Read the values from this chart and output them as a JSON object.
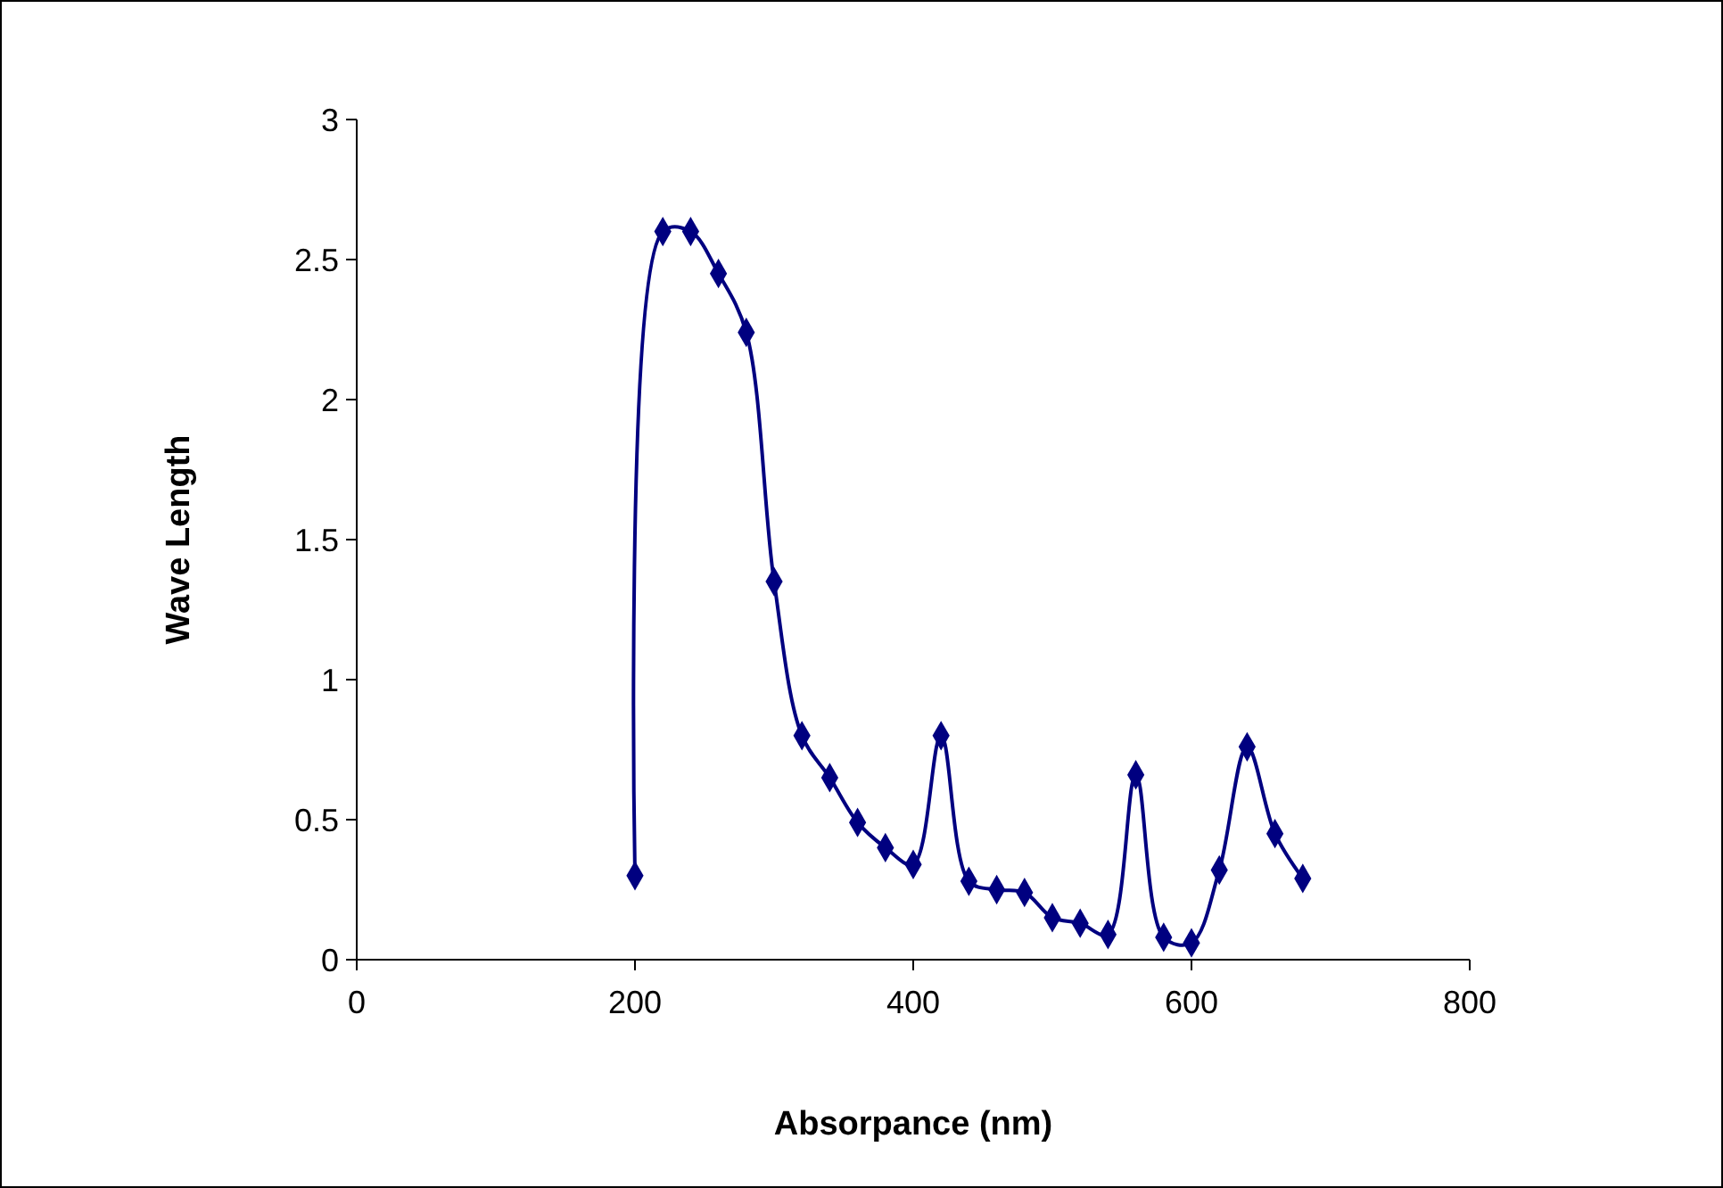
{
  "chart_data": {
    "type": "line",
    "xlabel": "Absorpance (nm)",
    "ylabel": "Wave Length",
    "x": [
      200,
      220,
      240,
      260,
      280,
      300,
      320,
      340,
      360,
      380,
      400,
      420,
      440,
      460,
      480,
      500,
      520,
      540,
      560,
      580,
      600,
      620,
      640,
      660,
      680
    ],
    "series": [
      {
        "color": "#000080",
        "values": [
          0.3,
          2.6,
          2.6,
          2.45,
          2.24,
          1.35,
          0.8,
          0.65,
          0.49,
          0.4,
          0.34,
          0.8,
          0.28,
          0.25,
          0.24,
          0.15,
          0.13,
          0.09,
          0.66,
          0.08,
          0.06,
          0.32,
          0.76,
          0.45,
          0.29
        ]
      }
    ],
    "xlim": [
      0,
      800
    ],
    "xticks": [
      0,
      200,
      400,
      600,
      800
    ],
    "ylim": [
      0,
      3
    ],
    "yticks": [
      0,
      0.5,
      1,
      1.5,
      2,
      2.5,
      3
    ],
    "grid": false,
    "marker": "diamond",
    "line_style": "solid"
  }
}
